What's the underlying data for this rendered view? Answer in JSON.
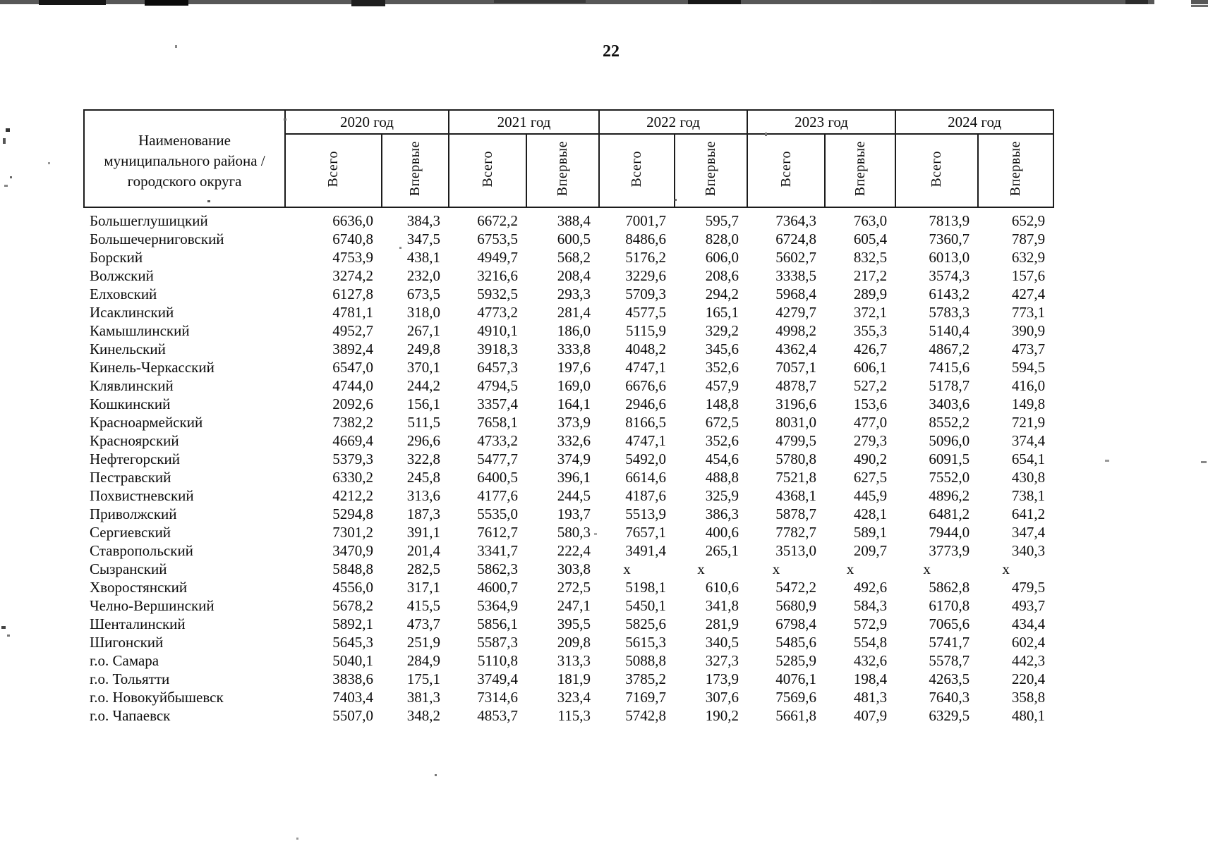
{
  "page": {
    "number": "22"
  },
  "table": {
    "name_header": "Наименование муниципального района / городского округа",
    "year_headers": [
      "2020 год",
      "2021 год",
      "2022 год",
      "2023 год",
      "2024 год"
    ],
    "sub_headers": {
      "total": "Всего",
      "first_time": "Впервые"
    },
    "rows": [
      {
        "name": "Большеглушицкий",
        "values": [
          "6636,0",
          "384,3",
          "6672,2",
          "388,4",
          "7001,7",
          "595,7",
          "7364,3",
          "763,0",
          "7813,9",
          "652,9"
        ]
      },
      {
        "name": "Большечерниговский",
        "values": [
          "6740,8",
          "347,5",
          "6753,5",
          "600,5",
          "8486,6",
          "828,0",
          "6724,8",
          "605,4",
          "7360,7",
          "787,9"
        ]
      },
      {
        "name": "Борский",
        "values": [
          "4753,9",
          "438,1",
          "4949,7",
          "568,2",
          "5176,2",
          "606,0",
          "5602,7",
          "832,5",
          "6013,0",
          "632,9"
        ]
      },
      {
        "name": "Волжский",
        "values": [
          "3274,2",
          "232,0",
          "3216,6",
          "208,4",
          "3229,6",
          "208,6",
          "3338,5",
          "217,2",
          "3574,3",
          "157,6"
        ]
      },
      {
        "name": "Елховский",
        "values": [
          "6127,8",
          "673,5",
          "5932,5",
          "293,3",
          "5709,3",
          "294,2",
          "5968,4",
          "289,9",
          "6143,2",
          "427,4"
        ]
      },
      {
        "name": "Исаклинский",
        "values": [
          "4781,1",
          "318,0",
          "4773,2",
          "281,4",
          "4577,5",
          "165,1",
          "4279,7",
          "372,1",
          "5783,3",
          "773,1"
        ]
      },
      {
        "name": "Камышлинский",
        "values": [
          "4952,7",
          "267,1",
          "4910,1",
          "186,0",
          "5115,9",
          "329,2",
          "4998,2",
          "355,3",
          "5140,4",
          "390,9"
        ]
      },
      {
        "name": "Кинельский",
        "values": [
          "3892,4",
          "249,8",
          "3918,3",
          "333,8",
          "4048,2",
          "345,6",
          "4362,4",
          "426,7",
          "4867,2",
          "473,7"
        ]
      },
      {
        "name": "Кинель-Черкасский",
        "values": [
          "6547,0",
          "370,1",
          "6457,3",
          "197,6",
          "4747,1",
          "352,6",
          "7057,1",
          "606,1",
          "7415,6",
          "594,5"
        ]
      },
      {
        "name": "Клявлинский",
        "values": [
          "4744,0",
          "244,2",
          "4794,5",
          "169,0",
          "6676,6",
          "457,9",
          "4878,7",
          "527,2",
          "5178,7",
          "416,0"
        ]
      },
      {
        "name": "Кошкинский",
        "values": [
          "2092,6",
          "156,1",
          "3357,4",
          "164,1",
          "2946,6",
          "148,8",
          "3196,6",
          "153,6",
          "3403,6",
          "149,8"
        ]
      },
      {
        "name": "Красноармейский",
        "values": [
          "7382,2",
          "511,5",
          "7658,1",
          "373,9",
          "8166,5",
          "672,5",
          "8031,0",
          "477,0",
          "8552,2",
          "721,9"
        ]
      },
      {
        "name": "Красноярский",
        "values": [
          "4669,4",
          "296,6",
          "4733,2",
          "332,6",
          "4747,1",
          "352,6",
          "4799,5",
          "279,3",
          "5096,0",
          "374,4"
        ]
      },
      {
        "name": "Нефтегорский",
        "values": [
          "5379,3",
          "322,8",
          "5477,7",
          "374,9",
          "5492,0",
          "454,6",
          "5780,8",
          "490,2",
          "6091,5",
          "654,1"
        ]
      },
      {
        "name": "Пестравский",
        "values": [
          "6330,2",
          "245,8",
          "6400,5",
          "396,1",
          "6614,6",
          "488,8",
          "7521,8",
          "627,5",
          "7552,0",
          "430,8"
        ]
      },
      {
        "name": "Похвистневский",
        "values": [
          "4212,2",
          "313,6",
          "4177,6",
          "244,5",
          "4187,6",
          "325,9",
          "4368,1",
          "445,9",
          "4896,2",
          "738,1"
        ]
      },
      {
        "name": "Приволжский",
        "values": [
          "5294,8",
          "187,3",
          "5535,0",
          "193,7",
          "5513,9",
          "386,3",
          "5878,7",
          "428,1",
          "6481,2",
          "641,2"
        ]
      },
      {
        "name": "Сергиевский",
        "values": [
          "7301,2",
          "391,1",
          "7612,7",
          "580,3",
          "7657,1",
          "400,6",
          "7782,7",
          "589,1",
          "7944,0",
          "347,4"
        ]
      },
      {
        "name": "Ставропольский",
        "values": [
          "3470,9",
          "201,4",
          "3341,7",
          "222,4",
          "3491,4",
          "265,1",
          "3513,0",
          "209,7",
          "3773,9",
          "340,3"
        ]
      },
      {
        "name": "Сызранский",
        "values": [
          "5848,8",
          "282,5",
          "5862,3",
          "303,8",
          "x",
          "x",
          "x",
          "x",
          "x",
          "x"
        ]
      },
      {
        "name": "Хворостянский",
        "values": [
          "4556,0",
          "317,1",
          "4600,7",
          "272,5",
          "5198,1",
          "610,6",
          "5472,2",
          "492,6",
          "5862,8",
          "479,5"
        ]
      },
      {
        "name": "Челно-Вершинский",
        "values": [
          "5678,2",
          "415,5",
          "5364,9",
          "247,1",
          "5450,1",
          "341,8",
          "5680,9",
          "584,3",
          "6170,8",
          "493,7"
        ]
      },
      {
        "name": "Шенталинский",
        "values": [
          "5892,1",
          "473,7",
          "5856,1",
          "395,5",
          "5825,6",
          "281,9",
          "6798,4",
          "572,9",
          "7065,6",
          "434,4"
        ]
      },
      {
        "name": "Шигонский",
        "values": [
          "5645,3",
          "251,9",
          "5587,3",
          "209,8",
          "5615,3",
          "340,5",
          "5485,6",
          "554,8",
          "5741,7",
          "602,4"
        ]
      },
      {
        "name": "г.о. Самара",
        "values": [
          "5040,1",
          "284,9",
          "5110,8",
          "313,3",
          "5088,8",
          "327,3",
          "5285,9",
          "432,6",
          "5578,7",
          "442,3"
        ]
      },
      {
        "name": "г.о. Тольятти",
        "values": [
          "3838,6",
          "175,1",
          "3749,4",
          "181,9",
          "3785,2",
          "173,9",
          "4076,1",
          "198,4",
          "4263,5",
          "220,4"
        ]
      },
      {
        "name": "г.о. Новокуйбышевск",
        "values": [
          "7403,4",
          "381,3",
          "7314,6",
          "323,4",
          "7169,7",
          "307,6",
          "7569,6",
          "481,3",
          "7640,3",
          "358,8"
        ]
      },
      {
        "name": "г.о. Чапаевск",
        "values": [
          "5507,0",
          "348,2",
          "4853,7",
          "115,3",
          "5742,8",
          "190,2",
          "5661,8",
          "407,9",
          "6329,5",
          "480,1"
        ]
      }
    ]
  }
}
